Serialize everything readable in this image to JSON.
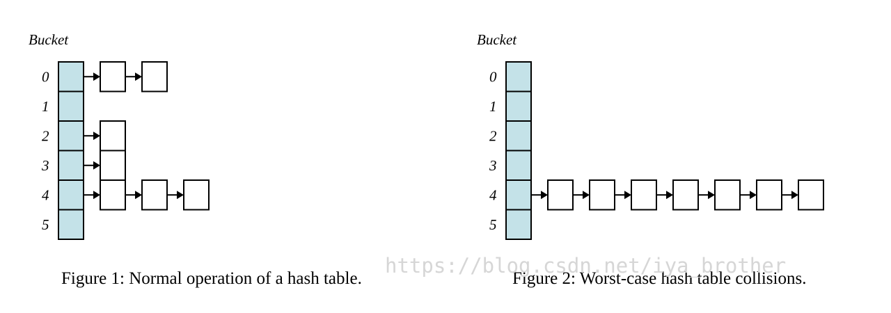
{
  "figures": [
    {
      "bucket_label": "Bucket",
      "indices": [
        "0",
        "1",
        "2",
        "3",
        "4",
        "5"
      ],
      "chains": [
        [
          0,
          2
        ],
        [
          1,
          0
        ],
        [
          2,
          1
        ],
        [
          3,
          1
        ],
        [
          4,
          3
        ],
        [
          5,
          0
        ]
      ],
      "caption": "Figure 1: Normal operation of a hash table."
    },
    {
      "bucket_label": "Bucket",
      "indices": [
        "0",
        "1",
        "2",
        "3",
        "4",
        "5"
      ],
      "chains": [
        [
          4,
          7
        ]
      ],
      "caption": "Figure 2: Worst-case hash table collisions."
    }
  ],
  "watermark": "https://blog.csdn.net/iya_brother",
  "colors": {
    "bucket_fill": "#c4e2e8",
    "watermark": "#d6d6d6"
  }
}
